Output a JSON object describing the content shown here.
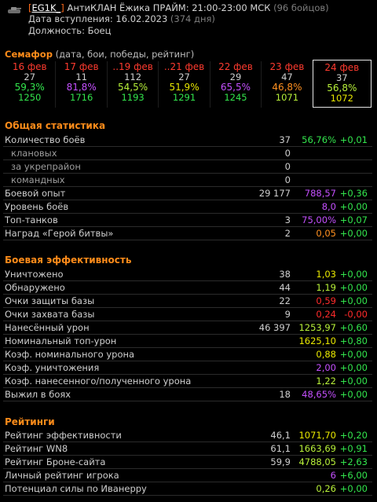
{
  "header": {
    "clan_bracket_open": "[",
    "clan_tag": "EG1K_",
    "clan_bracket_close": "]",
    "clan_name": " АнтиКЛАН Ёжика ПРАЙМ: 21:00-23:00 МСК",
    "clan_members": " (96 бойцов)",
    "join_label": "Дата вступления: 16.02.2023",
    "join_days": " (374 дня)",
    "position": "Должность: Боец"
  },
  "semaphore": {
    "title": "Семафор",
    "subtitle": " (дата, бои, победы, рейтинг)",
    "days": [
      {
        "date": "16 фев",
        "battles": "27",
        "winrate": "59,3%",
        "rating": "1250",
        "wcolor": "#33e64d",
        "rcolor": "#33e64d"
      },
      {
        "date": "17 фев",
        "battles": "11",
        "winrate": "81,8%",
        "rating": "1716",
        "wcolor": "#c550ff",
        "rcolor": "#33e64d"
      },
      {
        "date": "..19 фев",
        "battles": "112",
        "winrate": "54,5%",
        "rating": "1193",
        "wcolor": "#b9f23a",
        "rcolor": "#33e64d"
      },
      {
        "date": "..21 фев",
        "battles": "27",
        "winrate": "51,9%",
        "rating": "1291",
        "wcolor": "#e8e800",
        "rcolor": "#33e64d"
      },
      {
        "date": "22 фев",
        "battles": "29",
        "winrate": "65,5%",
        "rating": "1245",
        "wcolor": "#c550ff",
        "rcolor": "#33e64d"
      },
      {
        "date": "23 фев",
        "battles": "47",
        "winrate": "46,8%",
        "rating": "1071",
        "wcolor": "#ff9020",
        "rcolor": "#b9f23a"
      },
      {
        "date": "24 фев",
        "battles": "37",
        "winrate": "56,8%",
        "rating": "1072",
        "wcolor": "#b9f23a",
        "rcolor": "#e8e800"
      }
    ]
  },
  "general": {
    "title": "Общая статистика",
    "rows": [
      {
        "label": "Количество боёв",
        "v1": "37",
        "v2": "56,76%",
        "v3": "+0,01",
        "c2": "#33e64d",
        "c3": "#33e64d",
        "indent": false
      },
      {
        "label": "клановых",
        "v1": "0",
        "v2": "",
        "v3": "",
        "c2": "",
        "c3": "",
        "indent": true
      },
      {
        "label": "за укрепрайон",
        "v1": "0",
        "v2": "",
        "v3": "",
        "c2": "",
        "c3": "",
        "indent": true
      },
      {
        "label": "командных",
        "v1": "0",
        "v2": "",
        "v3": "",
        "c2": "",
        "c3": "",
        "indent": true
      },
      {
        "label": "Боевой опыт",
        "v1": "29 177",
        "v2": "788,57",
        "v3": "+0,36",
        "c2": "#c550ff",
        "c3": "#33e64d",
        "indent": false
      },
      {
        "label": "Уровень боёв",
        "v1": "",
        "v2": "8,0",
        "v3": "+0,00",
        "c2": "#c550ff",
        "c3": "#33e64d",
        "indent": false
      },
      {
        "label": "Топ-танков",
        "v1": "3",
        "v2": "75,00%",
        "v3": "+0,07",
        "c2": "#c550ff",
        "c3": "#33e64d",
        "indent": false
      },
      {
        "label": "Наград «Герой битвы»",
        "v1": "2",
        "v2": "0,05",
        "v3": "+0,00",
        "c2": "#ff9020",
        "c3": "#33e64d",
        "indent": false
      }
    ]
  },
  "efficiency": {
    "title": "Боевая эффективность",
    "rows": [
      {
        "label": "Уничтожено",
        "v1": "38",
        "v2": "1,03",
        "v3": "+0,00",
        "c2": "#e8e800",
        "c3": "#33e64d"
      },
      {
        "label": "Обнаружено",
        "v1": "44",
        "v2": "1,19",
        "v3": "+0,00",
        "c2": "#b9f23a",
        "c3": "#33e64d"
      },
      {
        "label": "Очки защиты базы",
        "v1": "22",
        "v2": "0,59",
        "v3": "+0,00",
        "c2": "#ff2b2b",
        "c3": "#33e64d"
      },
      {
        "label": "Очки захвата базы",
        "v1": "9",
        "v2": "0,24",
        "v3": "-0,00",
        "c2": "#ff2b2b",
        "c3": "#ff2b2b"
      },
      {
        "label": "Нанесённый урон",
        "v1": "46 397",
        "v2": "1253,97",
        "v3": "+0,60",
        "c2": "#b9f23a",
        "c3": "#33e64d"
      },
      {
        "label": "Номинальный топ-урон",
        "v1": "",
        "v2": "1625,10",
        "v3": "+0,80",
        "c2": "#e8e800",
        "c3": "#33e64d"
      },
      {
        "label": "Коэф. номинального урона",
        "v1": "",
        "v2": "0,88",
        "v3": "+0,00",
        "c2": "#e8e800",
        "c3": "#33e64d"
      },
      {
        "label": "Коэф. уничтожения",
        "v1": "",
        "v2": "2,00",
        "v3": "+0,00",
        "c2": "#c550ff",
        "c3": "#33e64d"
      },
      {
        "label": "Коэф. нанесенного/полученного урона",
        "v1": "",
        "v2": "1,22",
        "v3": "+0,00",
        "c2": "#b9f23a",
        "c3": "#33e64d"
      },
      {
        "label": "Выжил в боях",
        "v1": "18",
        "v2": "48,65%",
        "v3": "+0,00",
        "c2": "#c550ff",
        "c3": "#33e64d"
      }
    ]
  },
  "ratings": {
    "title": "Рейтинги",
    "rows": [
      {
        "label": "Рейтинг эффективности",
        "v1": "46,1",
        "v2": "1071,70",
        "v3": "+0,20",
        "c2": "#e8e800",
        "c3": "#33e64d"
      },
      {
        "label": "Рейтинг WN8",
        "v1": "61,1",
        "v2": "1663,69",
        "v3": "+0,91",
        "c2": "#b9f23a",
        "c3": "#33e64d"
      },
      {
        "label": "Рейтинг Броне-сайта",
        "v1": "59,9",
        "v2": "4788,05",
        "v3": "+2,63",
        "c2": "#b9f23a",
        "c3": "#33e64d"
      },
      {
        "label": "Личный рейтинг игрока",
        "v1": "",
        "v2": "6",
        "v3": "+6,00",
        "c2": "#c550ff",
        "c3": "#33e64d"
      },
      {
        "label": "Потенциал силы по Иванерру",
        "v1": "",
        "v2": "0,26",
        "v3": "+0,00",
        "c2": "#b9f23a",
        "c3": "#33e64d"
      }
    ]
  }
}
